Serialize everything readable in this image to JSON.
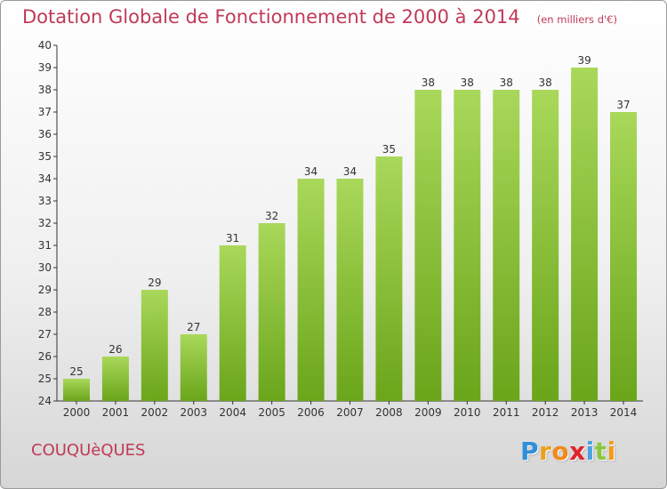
{
  "header": {
    "title": "Dotation Globale de Fonctionnement de 2000 à 2014",
    "unit": "(en milliers d'€)"
  },
  "footer": {
    "commune": "COUQUèQUES",
    "logo": {
      "letters": [
        "P",
        "r",
        "o",
        "x",
        "i",
        "t",
        "i"
      ],
      "colors": [
        "#2f8fd8",
        "#e8a21b",
        "#f08a1c",
        "#e0242a",
        "#4aa3e0",
        "#8cc63f",
        "#f39c1a"
      ]
    }
  },
  "colors": {
    "bar_light": "#a9d85a",
    "bar_dark": "#6aa51a",
    "text": "#c03a57",
    "axis": "#333333"
  },
  "chart_data": {
    "type": "bar",
    "title": "Dotation Globale de Fonctionnement de 2000 à 2014",
    "xlabel": "",
    "ylabel": "",
    "ylim": [
      24,
      40
    ],
    "y_ticks": [
      24,
      25,
      26,
      27,
      28,
      29,
      30,
      31,
      32,
      33,
      34,
      35,
      36,
      37,
      38,
      39,
      40
    ],
    "grid": false,
    "categories": [
      "2000",
      "2001",
      "2002",
      "2003",
      "2004",
      "2005",
      "2006",
      "2007",
      "2008",
      "2009",
      "2010",
      "2011",
      "2012",
      "2013",
      "2014"
    ],
    "values": [
      25,
      26,
      29,
      27,
      31,
      32,
      34,
      34,
      35,
      38,
      38,
      38,
      38,
      39,
      37
    ]
  }
}
